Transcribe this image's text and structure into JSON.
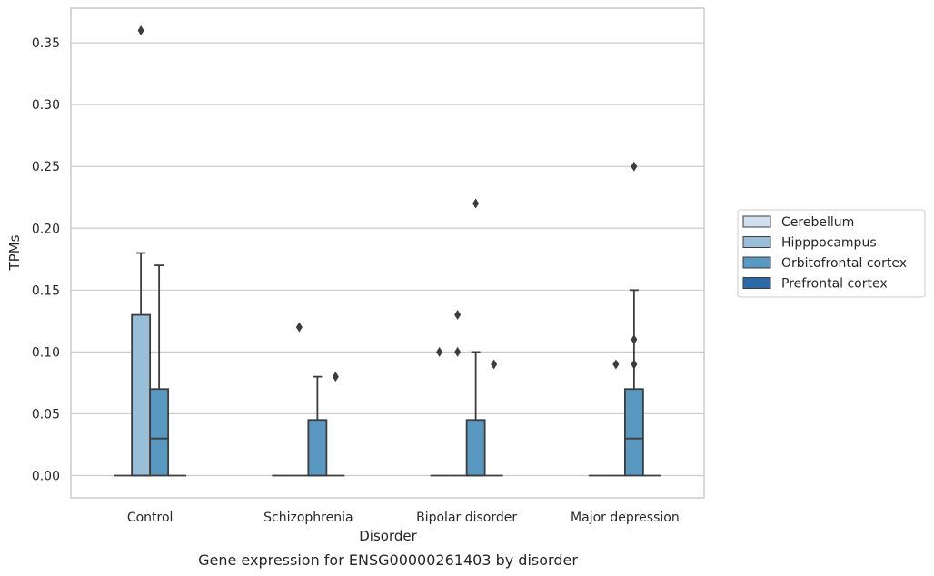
{
  "chart_data": {
    "type": "box",
    "xlabel": "Disorder",
    "ylabel": "TPMs",
    "caption": "Gene expression for ENSG00000261403 by disorder",
    "categories": [
      "Control",
      "Schizophrenia",
      "Bipolar disorder",
      "Major depression"
    ],
    "ylim": [
      -0.018,
      0.378
    ],
    "yticks": [
      0.0,
      0.05,
      0.1,
      0.15,
      0.2,
      0.25,
      0.3,
      0.35
    ],
    "ytick_labels": [
      "0.00",
      "0.05",
      "0.10",
      "0.15",
      "0.20",
      "0.25",
      "0.30",
      "0.35"
    ],
    "grid": "horizontal",
    "legend_position": "right",
    "series": [
      {
        "name": "Cerebellum",
        "color": "#d0dfee",
        "boxes": [
          {
            "q1": 0,
            "median": 0,
            "q3": 0,
            "whisker_low": 0,
            "whisker_high": 0,
            "outliers": []
          },
          {
            "q1": 0,
            "median": 0,
            "q3": 0,
            "whisker_low": 0,
            "whisker_high": 0,
            "outliers": []
          },
          {
            "q1": 0,
            "median": 0,
            "q3": 0,
            "whisker_low": 0,
            "whisker_high": 0,
            "outliers": [
              0.1
            ]
          },
          {
            "q1": 0,
            "median": 0,
            "q3": 0,
            "whisker_low": 0,
            "whisker_high": 0,
            "outliers": []
          }
        ]
      },
      {
        "name": "Hipppocampus",
        "color": "#99bfd8",
        "boxes": [
          {
            "q1": 0,
            "median": 0,
            "q3": 0.13,
            "whisker_low": 0,
            "whisker_high": 0.18,
            "outliers": [
              0.36
            ]
          },
          {
            "q1": 0,
            "median": 0,
            "q3": 0,
            "whisker_low": 0,
            "whisker_high": 0,
            "outliers": [
              0.12
            ]
          },
          {
            "q1": 0,
            "median": 0,
            "q3": 0,
            "whisker_low": 0,
            "whisker_high": 0,
            "outliers": [
              0.1,
              0.13
            ]
          },
          {
            "q1": 0,
            "median": 0,
            "q3": 0,
            "whisker_low": 0,
            "whisker_high": 0,
            "outliers": [
              0.09
            ]
          }
        ]
      },
      {
        "name": "Orbitofrontal cortex",
        "color": "#5898c1",
        "boxes": [
          {
            "q1": 0,
            "median": 0.03,
            "q3": 0.07,
            "whisker_low": 0,
            "whisker_high": 0.17,
            "outliers": []
          },
          {
            "q1": 0,
            "median": 0,
            "q3": 0.045,
            "whisker_low": 0,
            "whisker_high": 0.08,
            "outliers": []
          },
          {
            "q1": 0,
            "median": 0,
            "q3": 0.045,
            "whisker_low": 0,
            "whisker_high": 0.1,
            "outliers": [
              0.22
            ]
          },
          {
            "q1": 0,
            "median": 0.03,
            "q3": 0.07,
            "whisker_low": 0,
            "whisker_high": 0.15,
            "outliers": [
              0.09,
              0.11,
              0.25
            ]
          }
        ]
      },
      {
        "name": "Prefrontal cortex",
        "color": "#2b6aa6",
        "boxes": [
          {
            "q1": 0,
            "median": 0,
            "q3": 0,
            "whisker_low": 0,
            "whisker_high": 0,
            "outliers": []
          },
          {
            "q1": 0,
            "median": 0,
            "q3": 0,
            "whisker_low": 0,
            "whisker_high": 0,
            "outliers": [
              0.08
            ]
          },
          {
            "q1": 0,
            "median": 0,
            "q3": 0,
            "whisker_low": 0,
            "whisker_high": 0,
            "outliers": [
              0.09
            ]
          },
          {
            "q1": 0,
            "median": 0,
            "q3": 0,
            "whisker_low": 0,
            "whisker_high": 0,
            "outliers": []
          }
        ]
      }
    ]
  },
  "colors": {
    "grid": "#cccccc",
    "frame": "#cccccc",
    "line": "#3d3d3d",
    "background": "#ffffff"
  }
}
